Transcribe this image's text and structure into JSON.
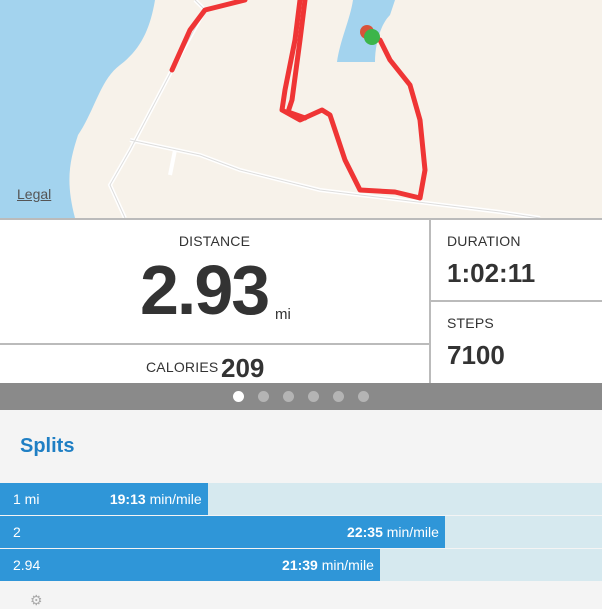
{
  "map": {
    "legal_label": "Legal",
    "route_color": "#ef3535",
    "water_color": "#a3d3ee"
  },
  "stats": {
    "distance": {
      "label": "DISTANCE",
      "value": "2.93",
      "unit": "mi"
    },
    "calories": {
      "label": "CALORIES",
      "value": "209"
    },
    "duration": {
      "label": "DURATION",
      "value": "1:02:11"
    },
    "steps": {
      "label": "STEPS",
      "value": "7100"
    }
  },
  "pager": {
    "pages": 6,
    "active": 0
  },
  "splits": {
    "title": "Splits",
    "unit": "min/mile",
    "rows": [
      {
        "mile": "1 mi",
        "pace": "19:13",
        "fill_fraction": 0.345
      },
      {
        "mile": "2",
        "pace": "22:35",
        "fill_fraction": 0.739
      },
      {
        "mile": "2.94",
        "pace": "21:39",
        "fill_fraction": 0.631
      }
    ]
  },
  "colors": {
    "accent": "#1f7fc4",
    "bar": "#2f96d8",
    "bar_track": "#d6e9ef"
  }
}
